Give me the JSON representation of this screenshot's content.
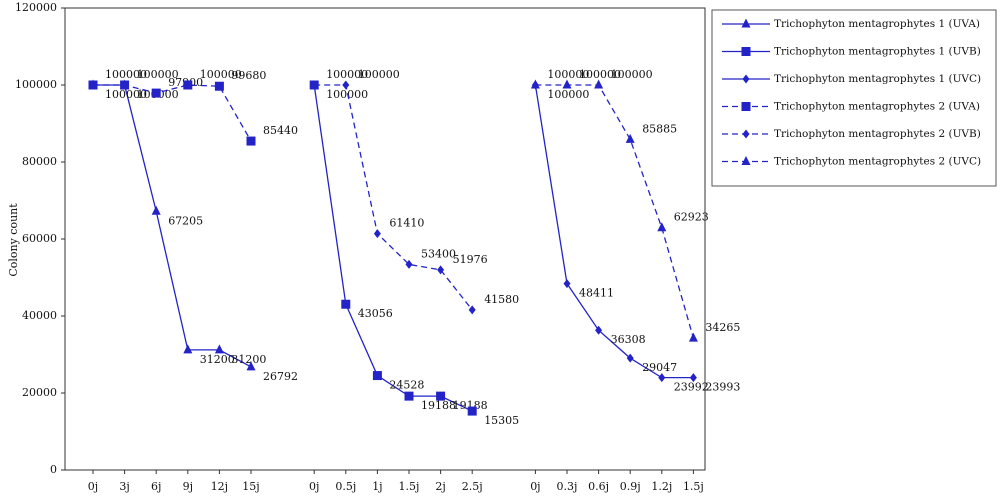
{
  "chart_data": {
    "type": "line",
    "y_label": "Colony count",
    "categories": [
      "0j",
      "3j",
      "6j",
      "9j",
      "12j",
      "15j",
      null,
      "0j",
      "0.5j",
      "1j",
      "1.5j",
      "2j",
      "2.5j",
      null,
      "0j",
      "0.3j",
      "0.6j",
      "0.9j",
      "1.2j",
      "1.5j"
    ],
    "ylim": [
      0,
      120000
    ],
    "yticks": [
      0,
      20000,
      40000,
      60000,
      80000,
      100000,
      120000
    ],
    "series": [
      {
        "name": "Trichophyton mentagrophytes 1 (UVA)",
        "color": "#2323c8",
        "dashed": false,
        "marker": "triangle",
        "values": [
          100000,
          100000,
          67205,
          31200,
          31200,
          26792,
          null,
          null,
          null,
          null,
          null,
          null,
          null,
          null,
          null,
          null,
          null,
          null,
          null,
          null
        ]
      },
      {
        "name": "Trichophyton mentagrophytes 1 (UVB)",
        "color": "#2323c8",
        "dashed": false,
        "marker": "square",
        "values": [
          null,
          null,
          null,
          null,
          null,
          null,
          null,
          100000,
          43056,
          24528,
          19188,
          19188,
          15305,
          null,
          null,
          null,
          null,
          null,
          null,
          null
        ]
      },
      {
        "name": "Trichophyton mentagrophytes 1 (UVC)",
        "color": "#2323c8",
        "dashed": false,
        "marker": "diamond",
        "values": [
          null,
          null,
          null,
          null,
          null,
          null,
          null,
          null,
          null,
          null,
          null,
          null,
          null,
          null,
          100000,
          48411,
          36308,
          29047,
          23992,
          23993
        ]
      },
      {
        "name": "Trichophyton mentagrophytes 2 (UVA)",
        "color": "#2323c8",
        "dashed": true,
        "marker": "square",
        "values": [
          100000,
          100000,
          97900,
          100000,
          99680,
          85440,
          null,
          null,
          null,
          null,
          null,
          null,
          null,
          null,
          null,
          null,
          null,
          null,
          null,
          null
        ]
      },
      {
        "name": "Trichophyton mentagrophytes 2 (UVB)",
        "color": "#2323c8",
        "dashed": true,
        "marker": "diamond",
        "values": [
          null,
          null,
          null,
          null,
          null,
          null,
          null,
          100000,
          100000,
          61410,
          53400,
          51976,
          41580,
          null,
          null,
          null,
          null,
          null,
          null,
          null
        ]
      },
      {
        "name": "Trichophyton mentagrophytes 2 (UVC)",
        "color": "#2323c8",
        "dashed": true,
        "marker": "triangle",
        "values": [
          null,
          null,
          null,
          null,
          null,
          null,
          null,
          null,
          null,
          null,
          null,
          null,
          null,
          null,
          100000,
          100000,
          100000,
          85885,
          62923,
          34265
        ]
      }
    ]
  }
}
